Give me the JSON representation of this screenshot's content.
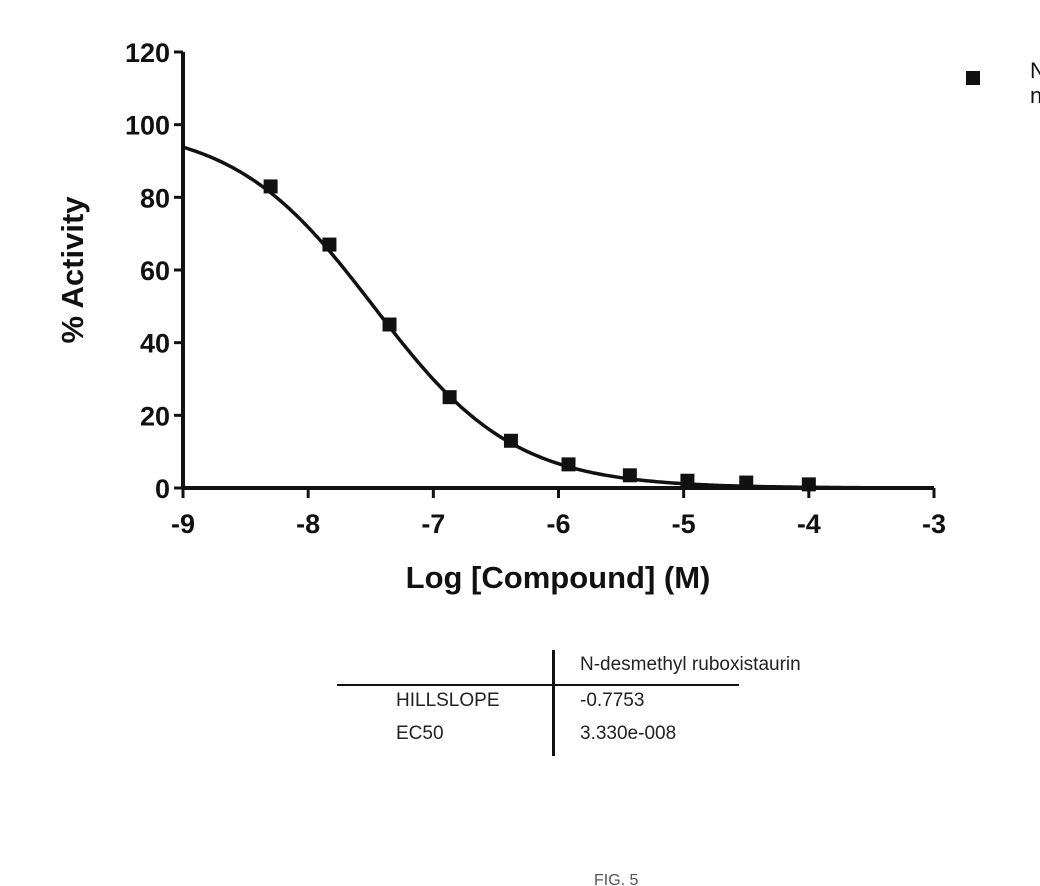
{
  "chart_data": {
    "type": "scatter",
    "xlabel": "Log [Compound] (M)",
    "ylabel": "% Activity",
    "xlim": [
      -9,
      -3
    ],
    "ylim": [
      0,
      120
    ],
    "x_ticks": [
      "-9",
      "-8",
      "-7",
      "-6",
      "-5",
      "-4",
      "-3"
    ],
    "y_ticks": [
      "0",
      "20",
      "40",
      "60",
      "80",
      "100",
      "120"
    ],
    "grid": false,
    "legend_position": "top-right",
    "series": [
      {
        "name": "N",
        "marker": "square",
        "x": [
          -8.3,
          -7.83,
          -7.35,
          -6.87,
          -6.38,
          -5.92,
          -5.43,
          -4.97,
          -4.5,
          -4.0
        ],
        "y": [
          83,
          67,
          45,
          25,
          13,
          6.5,
          3.5,
          2,
          1.5,
          1
        ],
        "fit": {
          "type": "four-parameter logistic",
          "top": 100,
          "bottom": 0,
          "hillslope": -0.7753,
          "log_ec50": -7.4776
        }
      }
    ],
    "legend": [
      {
        "label_lines": [
          "N",
          "n"
        ],
        "marker": "square"
      }
    ],
    "colors": {
      "ink": "#111111",
      "marker": "#111111"
    }
  },
  "results_table": {
    "header": [
      "",
      "N-desmethyl ruboxistaurin"
    ],
    "rows": [
      {
        "label": "HILLSLOPE",
        "value": "-0.7753"
      },
      {
        "label": "EC50",
        "value": "3.330e-008"
      }
    ]
  },
  "caption": "FIG. 5"
}
